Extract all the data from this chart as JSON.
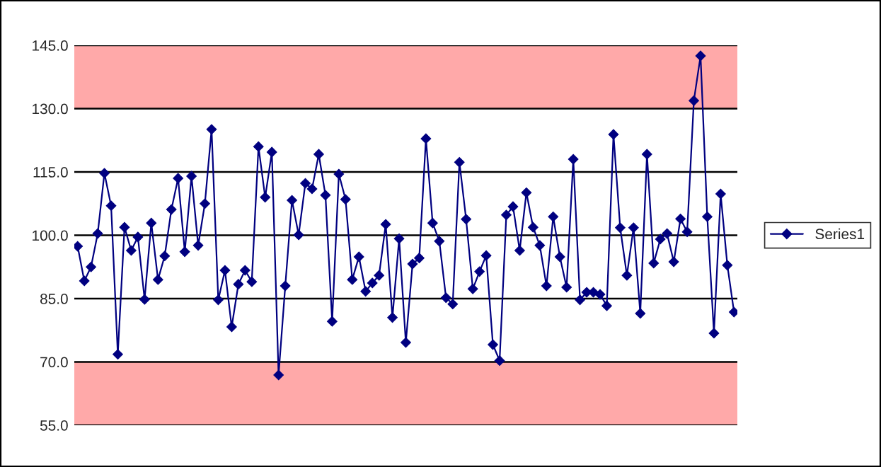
{
  "chart_data": {
    "type": "line",
    "categories": [
      null,
      null,
      null,
      null,
      null,
      null,
      null,
      null,
      null,
      null,
      null,
      null,
      null,
      null,
      null,
      null,
      null,
      null,
      null,
      null,
      null,
      null,
      null,
      null,
      null,
      null,
      null,
      null,
      null,
      null,
      null,
      null,
      null,
      null,
      null,
      null,
      null,
      null,
      null,
      null,
      null,
      null,
      null,
      null,
      null,
      null,
      null,
      null,
      null,
      null,
      null,
      null,
      null,
      null,
      null,
      null,
      null,
      null,
      null,
      null,
      null,
      null,
      null,
      null,
      null,
      null,
      null,
      null,
      null,
      null,
      null,
      null,
      null,
      null,
      null,
      null,
      null,
      null,
      null,
      null,
      null,
      null,
      null,
      null,
      null,
      null,
      null,
      null,
      null,
      null,
      null,
      null,
      null,
      null,
      null,
      null,
      null,
      null,
      null
    ],
    "series": [
      {
        "name": "Series1",
        "color": "#000080",
        "values": [
          97.4,
          89.2,
          92.5,
          100.4,
          114.7,
          107.0,
          71.8,
          101.9,
          96.4,
          99.6,
          84.8,
          102.9,
          89.5,
          95.1,
          106.1,
          113.5,
          96.1,
          114.0,
          97.6,
          107.5,
          125.1,
          84.7,
          91.7,
          78.3,
          88.4,
          91.7,
          89.0,
          121.0,
          109.0,
          119.7,
          66.9,
          88.0,
          108.3,
          100.1,
          112.3,
          111.0,
          119.2,
          109.5,
          79.6,
          114.5,
          108.5,
          89.5,
          94.9,
          86.7,
          88.7,
          90.5,
          102.6,
          80.5,
          99.2,
          74.6,
          93.2,
          94.6,
          122.9,
          102.9,
          98.6,
          85.2,
          83.7,
          117.3,
          103.8,
          87.3,
          91.4,
          95.2,
          74.1,
          70.3,
          104.8,
          106.8,
          96.4,
          110.1,
          101.9,
          97.6,
          88.0,
          104.4,
          94.9,
          87.7,
          118.0,
          84.7,
          86.5,
          86.5,
          86.0,
          83.3,
          123.9,
          101.8,
          90.5,
          101.8,
          81.5,
          119.2,
          93.4,
          99.1,
          100.4,
          93.7,
          103.9,
          100.8,
          131.9,
          142.5,
          104.4,
          76.8,
          109.8,
          92.9,
          81.8
        ]
      }
    ],
    "ylim": [
      55,
      145
    ],
    "yticks": [
      {
        "value": 55,
        "label": "55.0"
      },
      {
        "value": 70,
        "label": "70.0"
      },
      {
        "value": 85,
        "label": "85.0"
      },
      {
        "value": 100,
        "label": "100.0"
      },
      {
        "value": 115,
        "label": "115.0"
      },
      {
        "value": 130,
        "label": "130.0"
      },
      {
        "value": 145,
        "label": "145.0"
      }
    ],
    "tick_labels": "y",
    "grid": "y",
    "legend": "right",
    "marker": "diamond",
    "line_style": "solid",
    "bands": [
      {
        "axis": "y",
        "from": 130,
        "to": 145,
        "color": "#ff8080"
      },
      {
        "axis": "y",
        "from": 55,
        "to": 70,
        "color": "#ff8080"
      }
    ]
  }
}
